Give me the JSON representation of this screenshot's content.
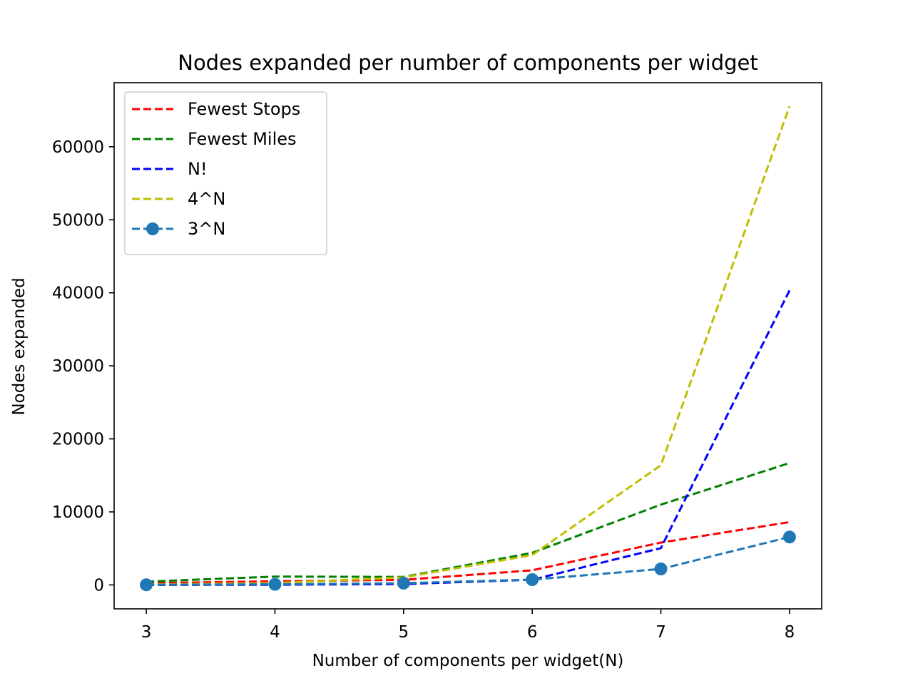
{
  "chart_data": {
    "type": "line",
    "title": "Nodes expanded per number of components per widget",
    "xlabel": "Number of components per widget(N)",
    "ylabel": "Nodes expanded",
    "x": [
      3,
      4,
      5,
      6,
      7,
      8
    ],
    "xlim": [
      2.75,
      8.25
    ],
    "ylim": [
      -3277,
      68771
    ],
    "xticks": [
      3,
      4,
      5,
      6,
      7,
      8
    ],
    "yticks": [
      0,
      10000,
      20000,
      30000,
      40000,
      50000,
      60000
    ],
    "grid": false,
    "legend_position": "top-left",
    "series": [
      {
        "name": "Fewest Stops",
        "color": "#ff0000",
        "marker": "none",
        "values": [
          250,
          500,
          700,
          2000,
          5800,
          8600
        ]
      },
      {
        "name": "Fewest Miles",
        "color": "#008000",
        "marker": "none",
        "values": [
          450,
          1150,
          1100,
          4400,
          11000,
          16700
        ]
      },
      {
        "name": "N!",
        "color": "#0000ff",
        "marker": "none",
        "values": [
          6,
          24,
          120,
          720,
          5040,
          40320
        ]
      },
      {
        "name": "4^N",
        "color": "#bfbf00",
        "marker": "none",
        "values": [
          64,
          256,
          1024,
          4096,
          16384,
          65536
        ]
      },
      {
        "name": "3^N",
        "color": "#1f77b4",
        "marker": "circle",
        "values": [
          27,
          81,
          243,
          729,
          2187,
          6561
        ]
      }
    ]
  }
}
